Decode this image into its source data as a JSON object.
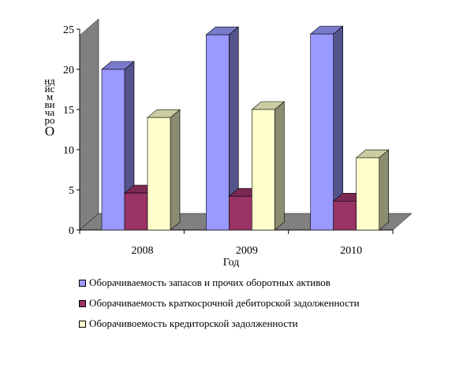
{
  "chart_data": {
    "type": "bar",
    "categories": [
      "2008",
      "2009",
      "2010"
    ],
    "series": [
      {
        "name": "Оборачиваемость запасов и прочих оборотных активов",
        "values": [
          20,
          24.3,
          24.4
        ],
        "color": "#9999ff"
      },
      {
        "name": "Оборачиваемость краткосрочной дебиторской задолженности",
        "values": [
          4.6,
          4.2,
          3.6
        ],
        "color": "#993366"
      },
      {
        "name": "Оборачивоемость кредиторской задолженности",
        "values": [
          14,
          15,
          9
        ],
        "color": "#ffffcc"
      }
    ],
    "xlabel": "Год",
    "ylabel": "Оборачиваемость в днях",
    "ylabel_chars_top": "ндйсмвичаро",
    "ylabel_chars_bottom": "О",
    "ylim": [
      0,
      25
    ],
    "yticks": [
      "0",
      "5",
      "10",
      "15",
      "20",
      "25"
    ],
    "legend_position": "bottom",
    "style": "3d-column",
    "wall_color": "#808080",
    "floor_color": "#808080"
  }
}
